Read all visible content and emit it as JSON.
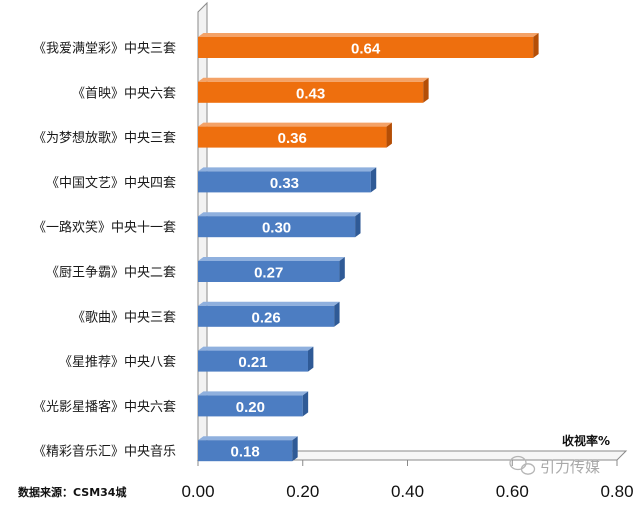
{
  "chart_data": {
    "type": "bar",
    "orientation": "horizontal",
    "categories": [
      "《我爱满堂彩》中央三套",
      "《首映》中央六套",
      "《为梦想放歌》中央三套",
      "《中国文艺》中央四套",
      "《一路欢笑》中央十一套",
      "《厨王争霸》中央二套",
      "《歌曲》中央三套",
      "《星推荐》中央八套",
      "《光影星播客》中央六套",
      "《精彩音乐汇》中央音乐"
    ],
    "values": [
      0.64,
      0.43,
      0.36,
      0.33,
      0.3,
      0.27,
      0.26,
      0.21,
      0.2,
      0.18
    ],
    "value_labels": [
      "0.64",
      "0.43",
      "0.36",
      "0.33",
      "0.30",
      "0.27",
      "0.26",
      "0.21",
      "0.20",
      "0.18"
    ],
    "highlight_count": 3,
    "xlim": [
      0,
      0.8
    ],
    "xticks": [
      "0.00",
      "0.20",
      "0.40",
      "0.60",
      "0.80"
    ],
    "xtick_values": [
      0,
      0.2,
      0.4,
      0.6,
      0.8
    ],
    "unit_label": "收视率%",
    "source": "数据来源：CSM34城",
    "watermark": "引力传媒",
    "grid": false,
    "colors": {
      "highlight": "#EE6F0E",
      "highlight_side": "#B44E06",
      "highlight_top": "#F4A267",
      "normal": "#4C7DC2",
      "normal_side": "#2F5A96",
      "normal_top": "#8FB0DE",
      "axis": "#8a8a8a"
    }
  }
}
